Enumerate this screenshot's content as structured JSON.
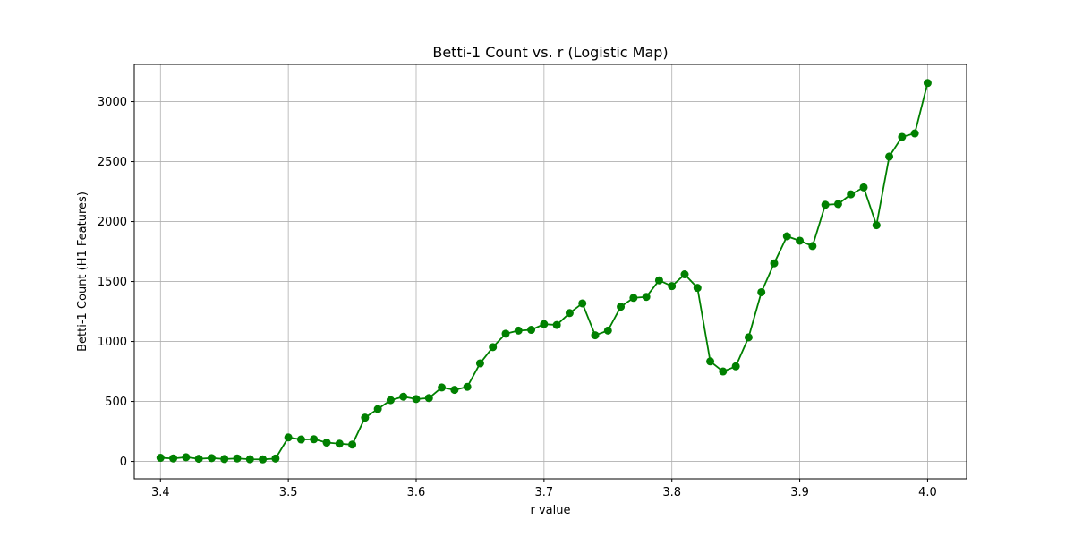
{
  "chart_data": {
    "type": "line",
    "title": "Betti-1 Count vs. r (Logistic Map)",
    "xlabel": "r value",
    "ylabel": "Betti-1 Count (H1 Features)",
    "xlim": [
      3.3795,
      4.0305
    ],
    "ylim": [
      -145,
      3310
    ],
    "xticks": [
      3.4,
      3.5,
      3.6,
      3.7,
      3.8,
      3.9,
      4.0
    ],
    "xtick_labels": [
      "3.4",
      "3.5",
      "3.6",
      "3.7",
      "3.8",
      "3.9",
      "4.0"
    ],
    "yticks": [
      0,
      500,
      1000,
      1500,
      2000,
      2500,
      3000
    ],
    "ytick_labels": [
      "0",
      "500",
      "1000",
      "1500",
      "2000",
      "2500",
      "3000"
    ],
    "grid": true,
    "legend": "none",
    "series": [
      {
        "color": "#008000",
        "marker": "circle",
        "x": [
          3.4,
          3.41,
          3.42,
          3.43,
          3.44,
          3.45,
          3.46,
          3.47,
          3.48,
          3.49,
          3.5,
          3.51,
          3.52,
          3.53,
          3.54,
          3.55,
          3.56,
          3.57,
          3.58,
          3.59,
          3.6,
          3.61,
          3.62,
          3.63,
          3.64,
          3.65,
          3.66,
          3.67,
          3.68,
          3.69,
          3.7,
          3.71,
          3.72,
          3.73,
          3.74,
          3.75,
          3.76,
          3.77,
          3.78,
          3.79,
          3.8,
          3.81,
          3.82,
          3.83,
          3.84,
          3.85,
          3.86,
          3.87,
          3.88,
          3.89,
          3.9,
          3.91,
          3.92,
          3.93,
          3.94,
          3.95,
          3.96,
          3.97,
          3.98,
          3.99,
          4.0
        ],
        "y": [
          30,
          25,
          35,
          22,
          28,
          20,
          25,
          18,
          17,
          24,
          200,
          183,
          185,
          157,
          148,
          140,
          365,
          437,
          511,
          540,
          520,
          528,
          617,
          597,
          622,
          818,
          953,
          1065,
          1091,
          1097,
          1145,
          1138,
          1237,
          1318,
          1052,
          1091,
          1290,
          1364,
          1372,
          1510,
          1462,
          1560,
          1447,
          834,
          750,
          793,
          1035,
          1411,
          1652,
          1877,
          1840,
          1796,
          2140,
          2146,
          2227,
          2285,
          1970,
          2542,
          2706,
          2735,
          3155
        ]
      }
    ]
  }
}
